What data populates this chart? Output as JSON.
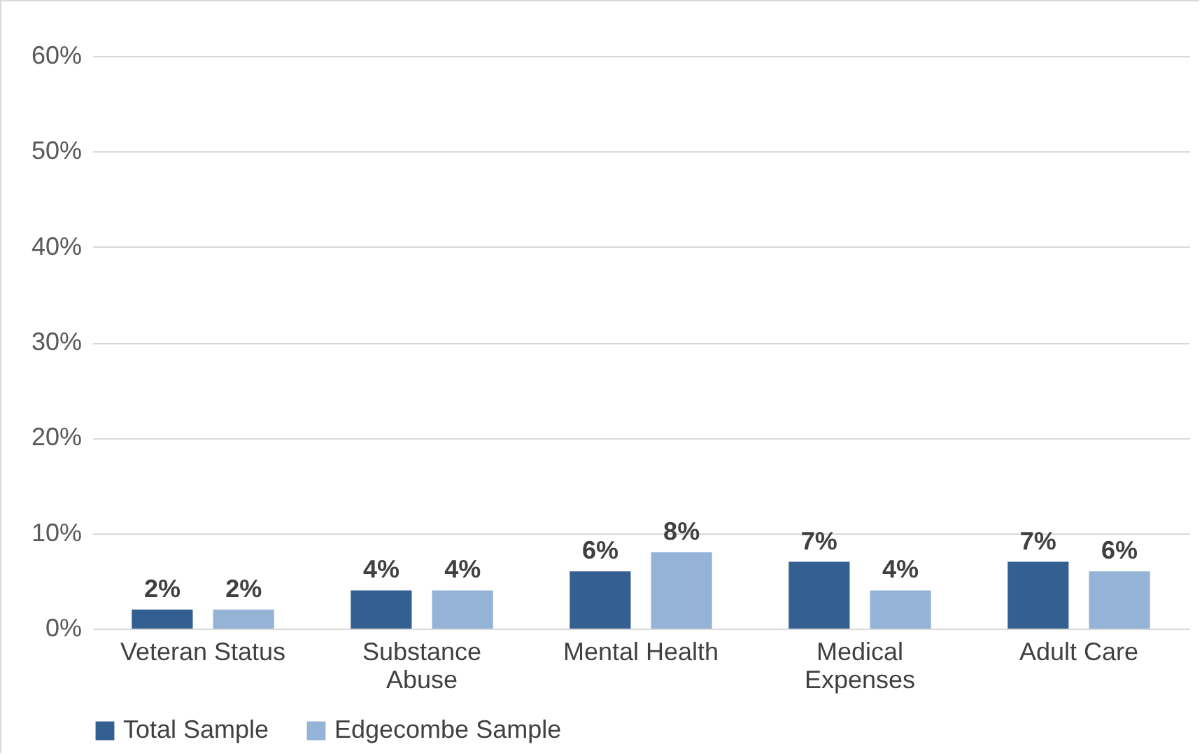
{
  "chart_data": {
    "type": "bar",
    "categories": [
      "Veteran Status",
      "Substance Abuse",
      "Mental Health",
      "Medical Expenses",
      "Adult Care"
    ],
    "series": [
      {
        "name": "Total Sample",
        "color": "#335f91",
        "values": [
          2,
          4,
          6,
          7,
          7
        ],
        "value_labels": [
          "2%",
          "4%",
          "6%",
          "7%",
          "7%"
        ]
      },
      {
        "name": "Edgecombe Sample",
        "color": "#95b3d7",
        "values": [
          2,
          4,
          8,
          4,
          6
        ],
        "value_labels": [
          "2%",
          "4%",
          "8%",
          "4%",
          "6%"
        ]
      }
    ],
    "ylim": [
      0,
      60
    ],
    "yticks": [
      {
        "value": 0,
        "label": "0%"
      },
      {
        "value": 10,
        "label": "10%"
      },
      {
        "value": 20,
        "label": "20%"
      },
      {
        "value": 30,
        "label": "30%"
      },
      {
        "value": 40,
        "label": "40%"
      },
      {
        "value": 50,
        "label": "50%"
      },
      {
        "value": 60,
        "label": "60%"
      }
    ],
    "grid": "y",
    "legend": "bottom"
  }
}
